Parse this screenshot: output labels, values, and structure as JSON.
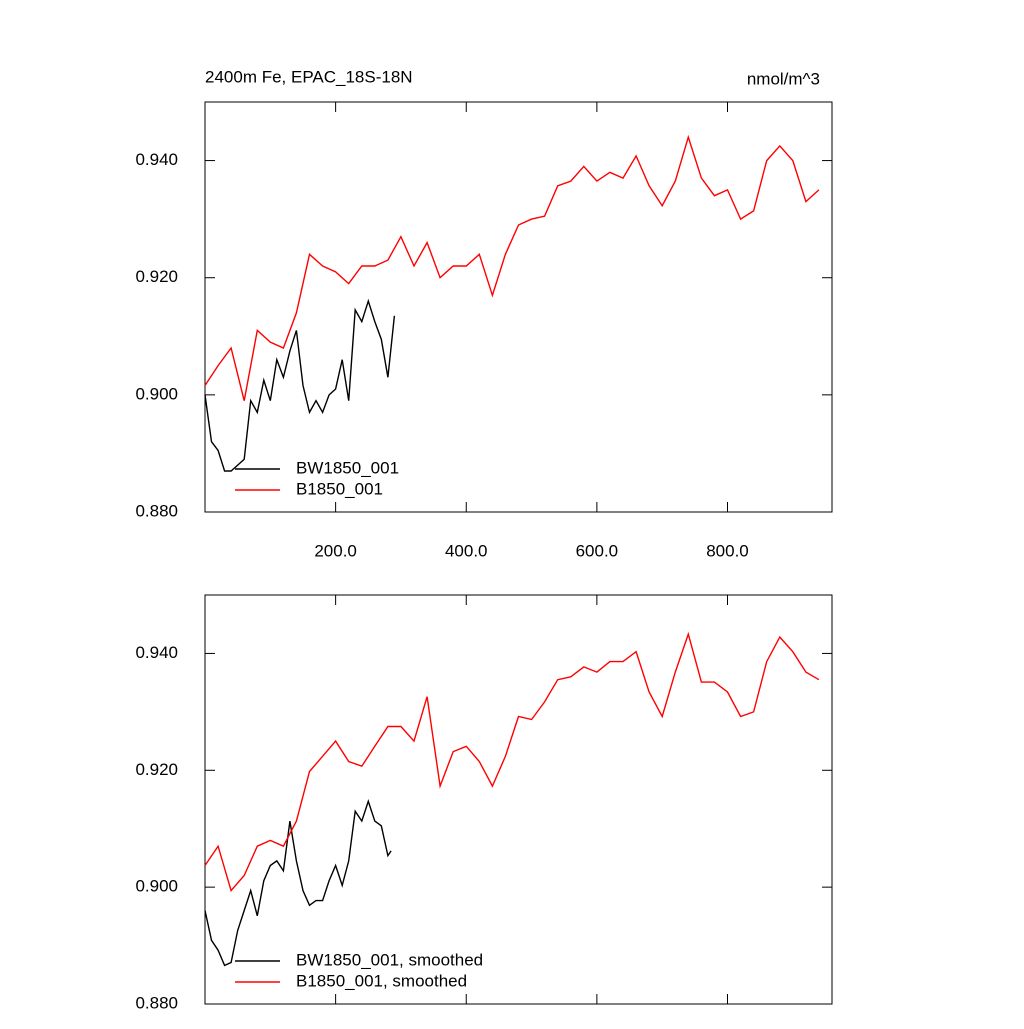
{
  "chart_data": [
    {
      "type": "line",
      "title": "2400m Fe, EPAC_18S-18N",
      "units": "nmol/m^3",
      "xlim": [
        0,
        960
      ],
      "xticks": [
        {
          "value": 200,
          "label": "200.0"
        },
        {
          "value": 400,
          "label": "400.0"
        },
        {
          "value": 600,
          "label": "600.0"
        },
        {
          "value": 800,
          "label": "800.0"
        }
      ],
      "ylim": [
        0.88,
        0.95
      ],
      "yticks": [
        {
          "value": 0.88,
          "label": "0.880"
        },
        {
          "value": 0.9,
          "label": "0.900"
        },
        {
          "value": 0.92,
          "label": "0.920"
        },
        {
          "value": 0.94,
          "label": "0.940"
        }
      ],
      "series": [
        {
          "name": "BW1850_001",
          "color": "#000000",
          "x": [
            0,
            10,
            20,
            30,
            40,
            50,
            60,
            70,
            80,
            90,
            100,
            110,
            120,
            130,
            140,
            150,
            160,
            170,
            180,
            190,
            200,
            210,
            220,
            230,
            240,
            250,
            260,
            270,
            280,
            290
          ],
          "values": [
            0.9,
            0.892,
            0.8905,
            0.887,
            0.887,
            0.888,
            0.889,
            0.899,
            0.897,
            0.9025,
            0.899,
            0.906,
            0.903,
            0.9075,
            0.911,
            0.9016,
            0.897,
            0.899,
            0.897,
            0.9,
            0.901,
            0.906,
            0.899,
            0.9145,
            0.9125,
            0.916,
            0.9125,
            0.9095,
            0.903,
            0.9135
          ]
        },
        {
          "name": "B1850_001",
          "color": "#ff0000",
          "x": [
            0,
            20,
            40,
            60,
            80,
            100,
            120,
            140,
            160,
            180,
            200,
            220,
            240,
            260,
            280,
            300,
            320,
            340,
            360,
            380,
            400,
            420,
            440,
            460,
            480,
            500,
            520,
            540,
            560,
            580,
            600,
            620,
            640,
            660,
            680,
            700,
            720,
            740,
            760,
            780,
            800,
            820,
            840,
            860,
            880,
            900,
            920,
            940
          ],
          "values": [
            0.9016,
            0.905,
            0.908,
            0.899,
            0.911,
            0.909,
            0.908,
            0.914,
            0.924,
            0.922,
            0.921,
            0.919,
            0.922,
            0.922,
            0.923,
            0.927,
            0.922,
            0.926,
            0.92,
            0.922,
            0.922,
            0.924,
            0.917,
            0.924,
            0.929,
            0.93,
            0.9305,
            0.9357,
            0.9365,
            0.939,
            0.9365,
            0.938,
            0.937,
            0.9408,
            0.9357,
            0.9323,
            0.9365,
            0.944,
            0.937,
            0.934,
            0.935,
            0.93,
            0.9314,
            0.94,
            0.9425,
            0.94,
            0.933,
            0.935
          ]
        }
      ]
    },
    {
      "type": "line",
      "xlim": [
        0,
        960
      ],
      "ylim": [
        0.88,
        0.95
      ],
      "yticks": [
        {
          "value": 0.88,
          "label": "0.880"
        },
        {
          "value": 0.9,
          "label": "0.900"
        },
        {
          "value": 0.92,
          "label": "0.920"
        },
        {
          "value": 0.94,
          "label": "0.940"
        }
      ],
      "series": [
        {
          "name": "BW1850_001, smoothed",
          "color": "#000000",
          "x": [
            0,
            10,
            20,
            30,
            40,
            50,
            60,
            70,
            80,
            90,
            100,
            110,
            120,
            130,
            140,
            150,
            160,
            170,
            180,
            190,
            200,
            210,
            220,
            230,
            240,
            250,
            260,
            270,
            280,
            285
          ],
          "values": [
            0.896,
            0.8909,
            0.8892,
            0.8866,
            0.8871,
            0.8926,
            0.896,
            0.8994,
            0.8951,
            0.9011,
            0.9037,
            0.9045,
            0.9028,
            0.9113,
            0.9045,
            0.8994,
            0.8969,
            0.8977,
            0.8977,
            0.9011,
            0.9037,
            0.9003,
            0.9045,
            0.913,
            0.9113,
            0.9147,
            0.9113,
            0.9105,
            0.9054,
            0.9062
          ]
        },
        {
          "name": "B1850_001, smoothed",
          "color": "#ff0000",
          "x": [
            0,
            20,
            40,
            60,
            80,
            100,
            120,
            140,
            160,
            180,
            200,
            220,
            240,
            260,
            280,
            300,
            320,
            340,
            360,
            380,
            400,
            420,
            440,
            460,
            480,
            500,
            520,
            540,
            560,
            580,
            600,
            620,
            640,
            660,
            680,
            700,
            720,
            740,
            760,
            780,
            800,
            820,
            840,
            860,
            880,
            900,
            920,
            940
          ],
          "values": [
            0.9037,
            0.907,
            0.8994,
            0.902,
            0.907,
            0.908,
            0.907,
            0.9113,
            0.9198,
            0.9224,
            0.925,
            0.9215,
            0.9207,
            0.9241,
            0.9275,
            0.9275,
            0.925,
            0.9326,
            0.9173,
            0.9232,
            0.9241,
            0.9215,
            0.9173,
            0.9224,
            0.9292,
            0.9287,
            0.9317,
            0.9355,
            0.936,
            0.9377,
            0.9368,
            0.9386,
            0.9386,
            0.9403,
            0.9334,
            0.9292,
            0.9368,
            0.9433,
            0.9351,
            0.9351,
            0.9334,
            0.9292,
            0.93,
            0.9386,
            0.9428,
            0.9403,
            0.9368,
            0.9355
          ]
        }
      ]
    }
  ]
}
